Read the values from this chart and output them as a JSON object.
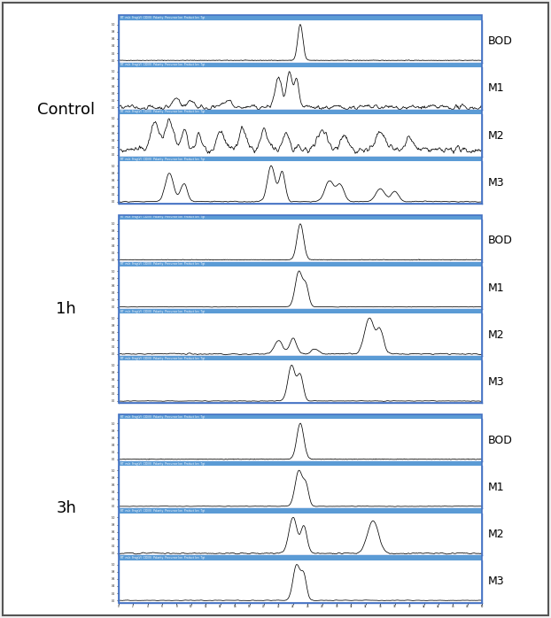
{
  "groups": [
    "Control",
    "1h",
    "3h"
  ],
  "labels": [
    "BOD",
    "M1",
    "M2",
    "M3"
  ],
  "bg_color": "#ffffff",
  "outer_bg": "#f5f5f5",
  "border_color": "#4472c4",
  "header_color": "#5b9bd5",
  "line_color": "#000000",
  "group_label_fontsize": 13,
  "sub_label_fontsize": 9,
  "n_points": 600,
  "fig_width": 6.22,
  "fig_height": 6.98,
  "dpi": 100
}
